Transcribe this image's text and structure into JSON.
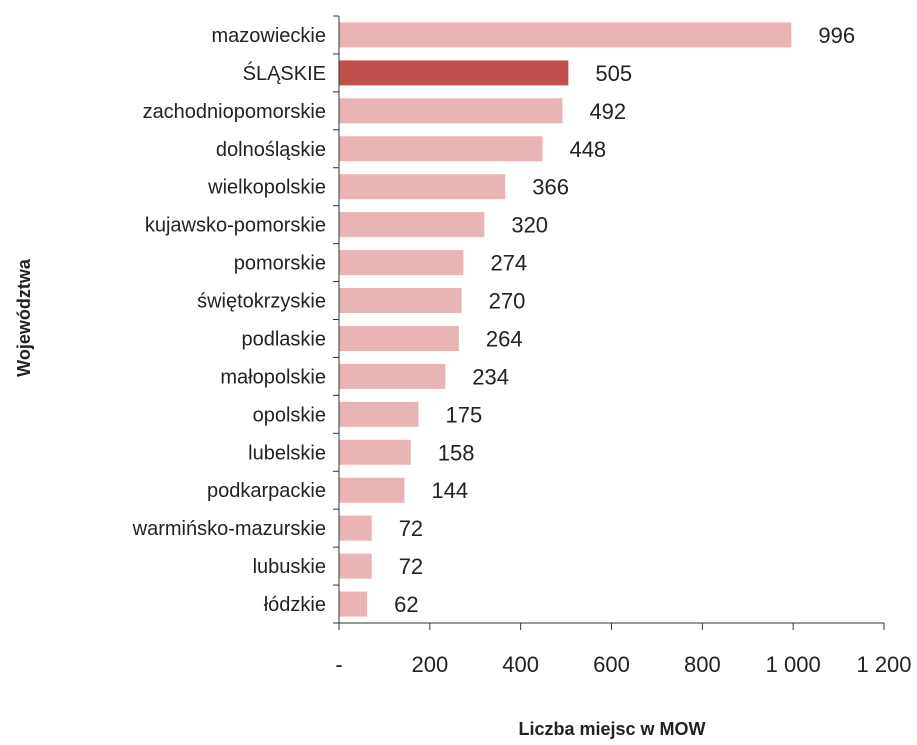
{
  "chart_data": {
    "type": "bar",
    "orientation": "horizontal",
    "categories": [
      "mazowieckie",
      "ŚLĄSKIE",
      "zachodniopomorskie",
      "dolnośląskie",
      "wielkopolskie",
      "kujawsko-pomorskie",
      "pomorskie",
      "świętokrzyskie",
      "podlaskie",
      "małopolskie",
      "opolskie",
      "lubelskie",
      "podkarpackie",
      "warmińsko-mazurskie",
      "lubuskie",
      "łódzkie"
    ],
    "values": [
      996,
      505,
      492,
      448,
      366,
      320,
      274,
      270,
      264,
      234,
      175,
      158,
      144,
      72,
      72,
      62
    ],
    "value_labels": [
      "996",
      "505",
      "492",
      "448",
      "366",
      "320",
      "274",
      "270",
      "264",
      "234",
      "175",
      "158",
      "144",
      "72",
      "72",
      "62"
    ],
    "highlight_category": "ŚLĄSKIE",
    "xlim": [
      0,
      1200
    ],
    "x_ticks": [
      0,
      200,
      400,
      600,
      800,
      1000,
      1200
    ],
    "x_tick_labels": [
      "-",
      "200",
      "400",
      "600",
      "800",
      "1 000",
      "1 200"
    ],
    "xlabel": "Liczba miejsc w MOW",
    "ylabel": "Województwa",
    "title": "",
    "grid": false,
    "colors": {
      "bar": "#e8b4b5",
      "highlight": "#c0504d",
      "axis": "#333333"
    }
  }
}
